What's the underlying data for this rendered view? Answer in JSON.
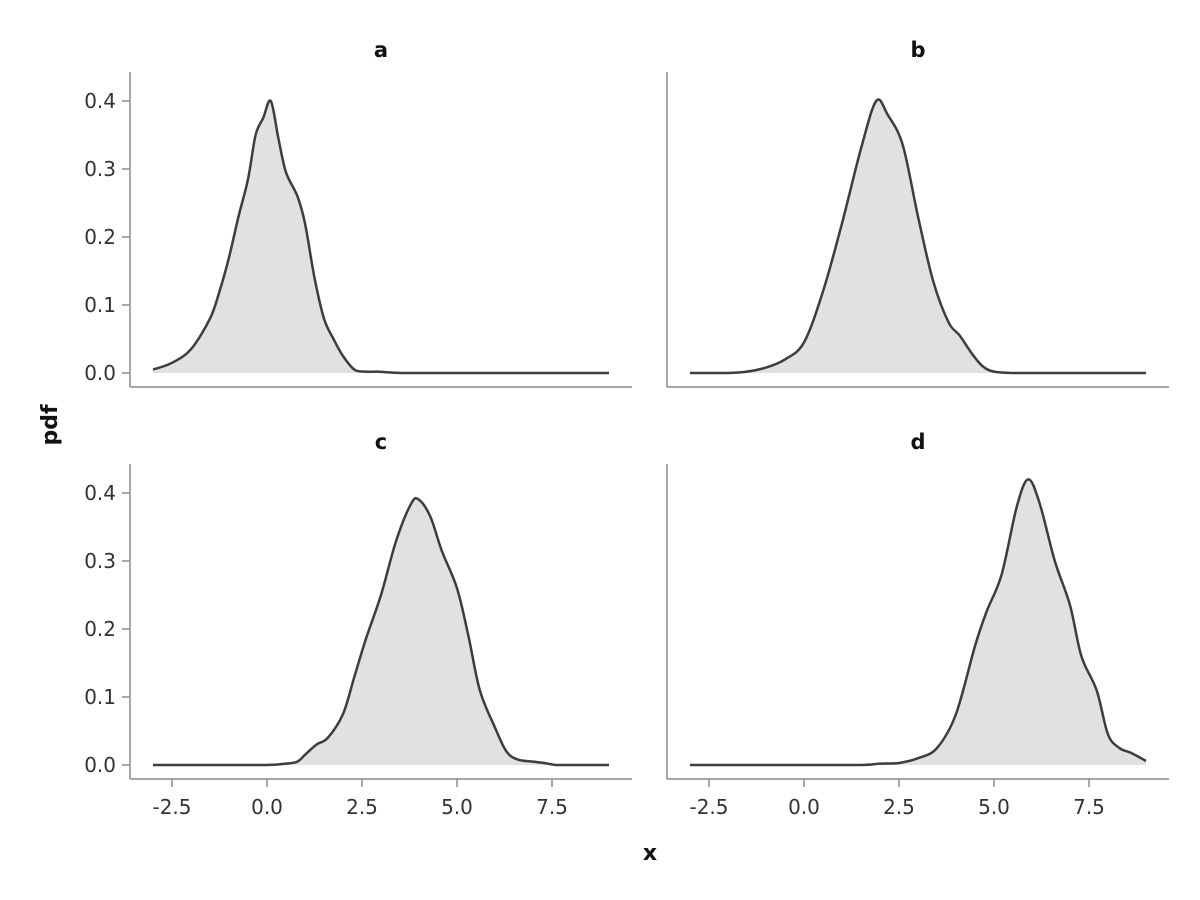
{
  "chart_data": {
    "type": "area",
    "xlabel": "x",
    "ylabel": "pdf",
    "xlim": [
      -3.0,
      9.0
    ],
    "ylim": [
      0.0,
      0.42
    ],
    "xticks": [
      -2.5,
      0.0,
      2.5,
      5.0,
      7.5
    ],
    "xtick_labels": [
      "-2.5",
      "0.0",
      "2.5",
      "5.0",
      "7.5"
    ],
    "yticks": [
      0.0,
      0.1,
      0.2,
      0.3,
      0.4
    ],
    "ytick_labels": [
      "0.0",
      "0.1",
      "0.2",
      "0.3",
      "0.4"
    ],
    "colors": {
      "fill": "#e1e1e1",
      "line": "#3d3d3d",
      "axis": "#8c8c8c"
    },
    "grid": false,
    "panels": [
      {
        "title": "a",
        "x": [
          -3.0,
          -2.5,
          -2.0,
          -1.5,
          -1.25,
          -1.0,
          -0.75,
          -0.5,
          -0.3,
          -0.1,
          0.1,
          0.3,
          0.5,
          0.8,
          1.0,
          1.25,
          1.5,
          1.75,
          2.0,
          2.3,
          2.6,
          2.9,
          3.2,
          3.6,
          4.0,
          5.0,
          6.0,
          7.0,
          8.0,
          9.0
        ],
        "y": [
          0.005,
          0.015,
          0.035,
          0.08,
          0.12,
          0.17,
          0.23,
          0.285,
          0.35,
          0.375,
          0.4,
          0.345,
          0.295,
          0.26,
          0.22,
          0.14,
          0.08,
          0.05,
          0.025,
          0.005,
          0.002,
          0.002,
          0.001,
          0.0,
          0.0,
          0.0,
          0.0,
          0.0,
          0.0,
          0.0
        ]
      },
      {
        "title": "b",
        "x": [
          -3.0,
          -2.0,
          -1.5,
          -1.0,
          -0.5,
          0.0,
          0.5,
          1.0,
          1.5,
          1.9,
          2.2,
          2.6,
          3.0,
          3.4,
          3.8,
          4.1,
          4.4,
          4.7,
          5.0,
          5.5,
          6.0,
          7.0,
          8.0,
          9.0
        ],
        "y": [
          0.0,
          0.0,
          0.002,
          0.008,
          0.02,
          0.045,
          0.12,
          0.22,
          0.33,
          0.4,
          0.38,
          0.335,
          0.23,
          0.135,
          0.075,
          0.055,
          0.03,
          0.01,
          0.002,
          0.0,
          0.0,
          0.0,
          0.0,
          0.0
        ]
      },
      {
        "title": "c",
        "x": [
          -3.0,
          -1.0,
          0.0,
          0.5,
          0.8,
          1.0,
          1.3,
          1.6,
          2.0,
          2.3,
          2.6,
          3.0,
          3.4,
          3.8,
          4.0,
          4.3,
          4.6,
          5.0,
          5.3,
          5.6,
          6.0,
          6.3,
          6.6,
          7.0,
          7.3,
          7.6,
          8.0,
          9.0
        ],
        "y": [
          0.0,
          0.0,
          0.0,
          0.002,
          0.005,
          0.015,
          0.03,
          0.04,
          0.075,
          0.13,
          0.185,
          0.25,
          0.33,
          0.385,
          0.39,
          0.365,
          0.315,
          0.26,
          0.19,
          0.11,
          0.055,
          0.02,
          0.008,
          0.005,
          0.003,
          0.0,
          0.0,
          0.0
        ]
      },
      {
        "title": "d",
        "x": [
          -3.0,
          0.0,
          1.5,
          2.0,
          2.5,
          3.0,
          3.5,
          4.0,
          4.5,
          4.8,
          5.2,
          5.6,
          5.9,
          6.2,
          6.6,
          7.0,
          7.3,
          7.7,
          8.0,
          8.3,
          8.6,
          9.0
        ],
        "y": [
          0.0,
          0.0,
          0.0,
          0.002,
          0.003,
          0.01,
          0.025,
          0.075,
          0.175,
          0.225,
          0.28,
          0.38,
          0.42,
          0.385,
          0.3,
          0.235,
          0.16,
          0.11,
          0.045,
          0.025,
          0.018,
          0.006
        ]
      }
    ]
  }
}
